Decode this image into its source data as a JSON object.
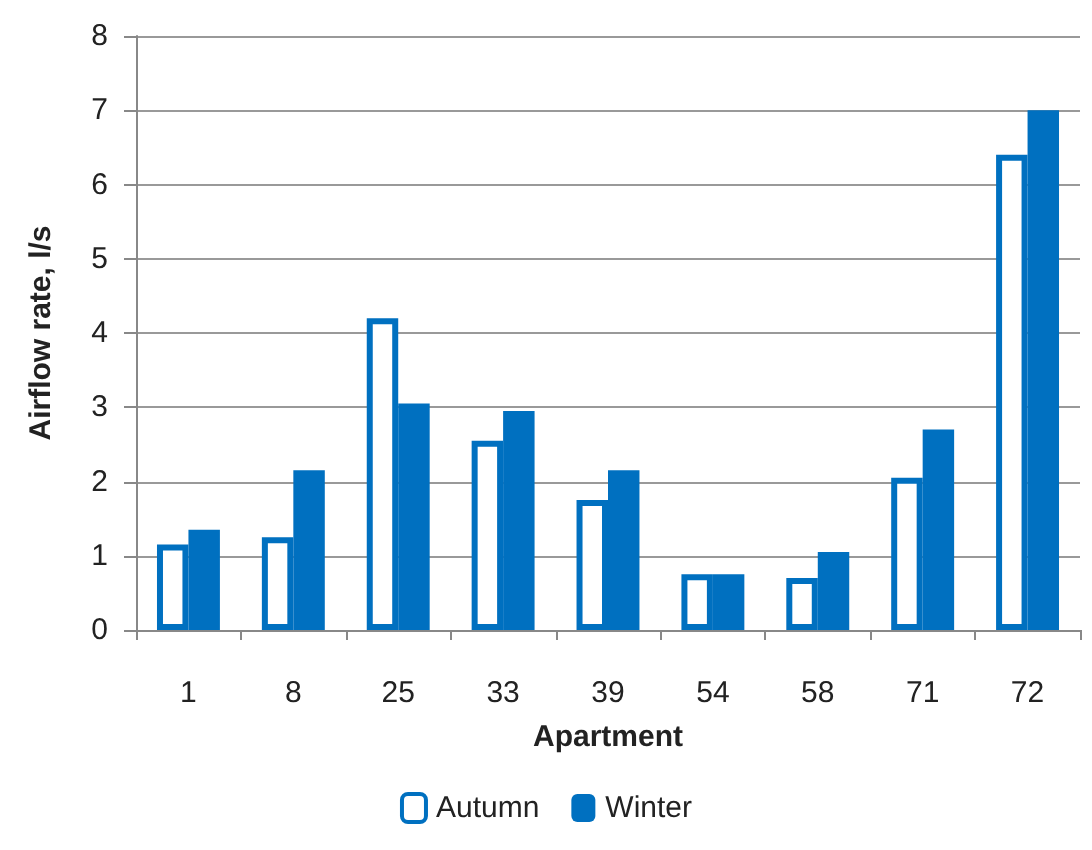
{
  "chart_data": {
    "type": "bar",
    "xlabel": "Apartment",
    "ylabel": "Airflow rate, l/s",
    "categories": [
      "1",
      "8",
      "25",
      "33",
      "39",
      "54",
      "58",
      "71",
      "72"
    ],
    "series": [
      {
        "name": "Autumn",
        "color": "#0070c0",
        "values": [
          1.15,
          1.25,
          4.2,
          2.55,
          1.75,
          0.75,
          0.7,
          2.05,
          6.4
        ]
      },
      {
        "name": "Winter",
        "color": "#0070c0",
        "values": [
          1.35,
          2.15,
          3.05,
          2.95,
          2.15,
          0.75,
          1.05,
          2.7,
          7.0
        ]
      }
    ],
    "ylim": [
      0,
      8
    ],
    "yticks": [
      0,
      1,
      2,
      3,
      4,
      5,
      6,
      7,
      8
    ],
    "grid": "y",
    "legend": "bottom"
  }
}
